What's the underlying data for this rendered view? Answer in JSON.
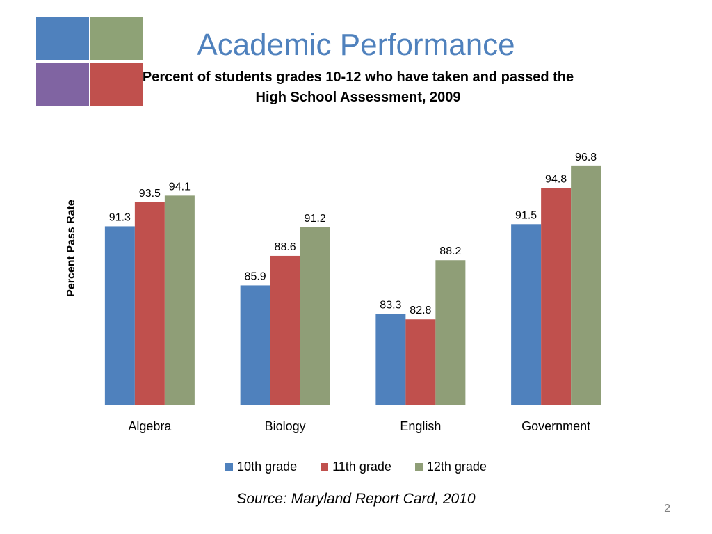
{
  "slide": {
    "title": "Academic Performance",
    "subtitle": "Percent of students grades 10-12 who have taken and passed the High School Assessment, 2009",
    "source": "Source: Maryland Report Card, 2010",
    "page_number": "2"
  },
  "logo": {
    "colors": [
      "#4f81bd",
      "#8ea276",
      "#8064a2",
      "#c0504d"
    ]
  },
  "chart_data": {
    "type": "bar",
    "title": "",
    "xlabel": "",
    "ylabel": "Percent Pass Rate",
    "ylim": [
      75,
      100
    ],
    "grid": false,
    "legend_position": "bottom",
    "categories": [
      "Algebra",
      "Biology",
      "English",
      "Government"
    ],
    "series": [
      {
        "name": "10th grade",
        "color": "#4f81bd",
        "values": [
          91.3,
          85.9,
          83.3,
          91.5
        ]
      },
      {
        "name": "11th grade",
        "color": "#c0504d",
        "values": [
          93.5,
          88.6,
          82.8,
          94.8
        ]
      },
      {
        "name": "12th grade",
        "color": "#8f9e77",
        "values": [
          94.1,
          91.2,
          88.2,
          96.8
        ]
      }
    ]
  }
}
